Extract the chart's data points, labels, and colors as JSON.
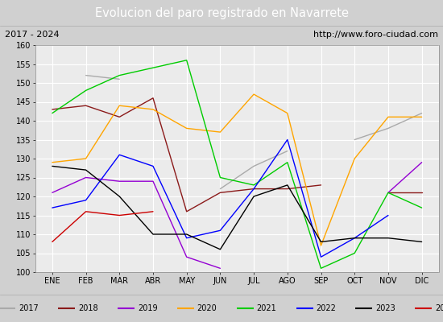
{
  "title": "Evolucion del paro registrado en Navarrete",
  "subtitle_left": "2017 - 2024",
  "subtitle_right": "http://www.foro-ciudad.com",
  "months": [
    "ENE",
    "FEB",
    "MAR",
    "ABR",
    "MAY",
    "JUN",
    "JUL",
    "AGO",
    "SEP",
    "OCT",
    "NOV",
    "DIC"
  ],
  "ylim": [
    100,
    160
  ],
  "yticks": [
    100,
    105,
    110,
    115,
    120,
    125,
    130,
    135,
    140,
    145,
    150,
    155,
    160
  ],
  "series": {
    "2017": {
      "data": [
        null,
        152,
        151,
        null,
        null,
        122,
        128,
        132,
        null,
        135,
        138,
        142
      ],
      "color": "#aaaaaa",
      "linewidth": 1.0
    },
    "2018": {
      "data": [
        143,
        144,
        141,
        146,
        116,
        121,
        122,
        122,
        123,
        null,
        121,
        121
      ],
      "color": "#8b1a1a",
      "linewidth": 1.0
    },
    "2019": {
      "data": [
        121,
        125,
        124,
        124,
        104,
        101,
        null,
        null,
        null,
        null,
        121,
        129
      ],
      "color": "#9400d3",
      "linewidth": 1.0
    },
    "2020": {
      "data": [
        129,
        130,
        144,
        143,
        138,
        137,
        147,
        142,
        107,
        130,
        141,
        141
      ],
      "color": "#ffa500",
      "linewidth": 1.0
    },
    "2021": {
      "data": [
        142,
        148,
        152,
        154,
        156,
        125,
        123,
        129,
        101,
        105,
        121,
        117
      ],
      "color": "#00cc00",
      "linewidth": 1.0
    },
    "2022": {
      "data": [
        117,
        119,
        131,
        128,
        109,
        111,
        122,
        135,
        104,
        109,
        115,
        null
      ],
      "color": "#0000ff",
      "linewidth": 1.0
    },
    "2023": {
      "data": [
        128,
        127,
        120,
        110,
        110,
        106,
        120,
        123,
        108,
        109,
        109,
        108
      ],
      "color": "#000000",
      "linewidth": 1.0
    },
    "2024": {
      "data": [
        108,
        116,
        115,
        116,
        null,
        null,
        null,
        null,
        null,
        null,
        null,
        null
      ],
      "color": "#cc0000",
      "linewidth": 1.0
    }
  },
  "title_bg_color": "#5b8cc8",
  "title_fg_color": "#ffffff",
  "subtitle_bg_color": "#e0e0e0",
  "plot_bg_color": "#ebebeb",
  "grid_color": "#ffffff",
  "legend_bg_color": "#e0e0e0",
  "outer_bg_color": "#d0d0d0"
}
